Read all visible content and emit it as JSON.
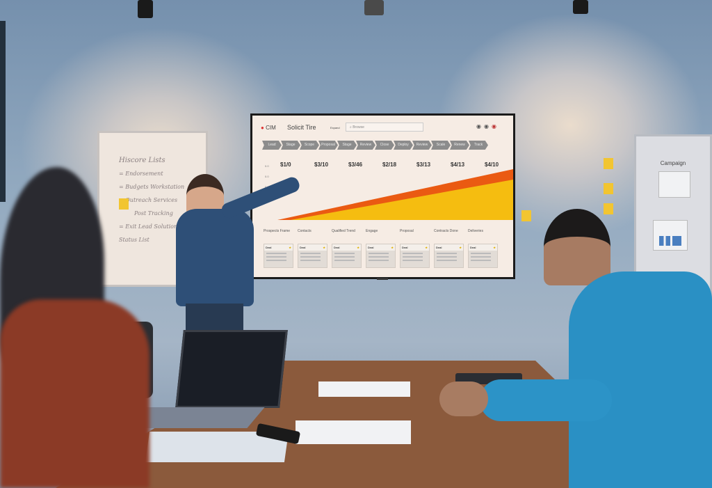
{
  "screen": {
    "brand": "CIM",
    "title": "Solicit Tire",
    "nav_label": "Expand",
    "search_placeholder": "Browse",
    "pipeline_steps": [
      "Lead",
      "Stage",
      "Scope",
      "Proposal",
      "Stage",
      "Review",
      "Close",
      "Deploy",
      "Review",
      "Scale",
      "Renew",
      "Track"
    ],
    "y_labels": [
      "0.0",
      "0.0",
      "0.0",
      "0.0"
    ],
    "values": [
      "$1/0",
      "$3/10",
      "$3/46",
      "$2/18",
      "$3/13",
      "$4/13",
      "$4/10"
    ],
    "columns": [
      "Prospects Frame",
      "Contacts",
      "Qualified Trend",
      "Engage",
      "Proposal",
      "Contracts Done",
      "Deliveries"
    ],
    "cards": [
      "Deal",
      "Deal",
      "Deal",
      "Deal",
      "Deal",
      "Deal",
      "Deal"
    ],
    "colors": {
      "orange_band": "#ea5a12",
      "yellow_area": "#f5bd10"
    }
  },
  "whiteboard": {
    "lines": [
      "Hiscore Lists",
      "= Endorsement",
      "= Budgets Workstation",
      "= Outreach Services",
      "Post Tracking",
      "= Exit Lead Solutions",
      "Status List"
    ]
  },
  "right_board": {
    "title": "Campaign"
  }
}
